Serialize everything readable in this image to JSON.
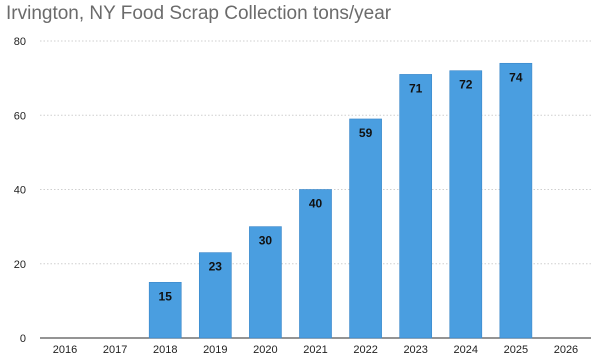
{
  "chart_data": {
    "type": "bar",
    "title": "Irvington, NY Food Scrap Collection tons/year",
    "xlabel": "",
    "ylabel": "",
    "categories": [
      "2016",
      "2017",
      "2018",
      "2019",
      "2020",
      "2021",
      "2022",
      "2023",
      "2024",
      "2025",
      "2026"
    ],
    "values": [
      null,
      null,
      15,
      23,
      30,
      40,
      59,
      71,
      72,
      74,
      null
    ],
    "data_labels": [
      "",
      "",
      "15",
      "23",
      "30",
      "40",
      "59",
      "71",
      "72",
      "74",
      ""
    ],
    "ylim": [
      0,
      80
    ],
    "yticks": [
      0,
      20,
      40,
      60,
      80
    ],
    "ytick_labels": [
      "0",
      "20",
      "40",
      "60",
      "80"
    ],
    "grid": true,
    "legend": "none",
    "bar_color": "#4a9ee0"
  }
}
